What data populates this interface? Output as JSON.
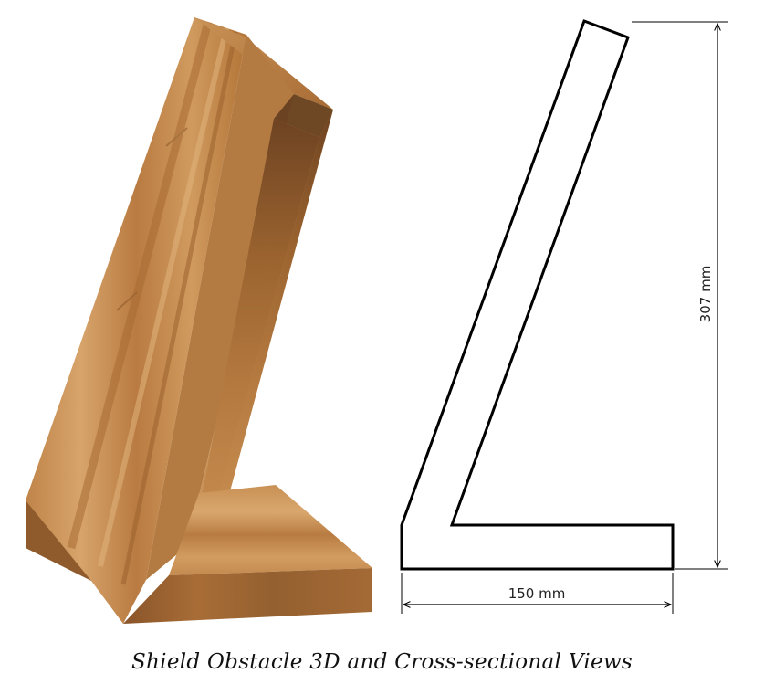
{
  "dimensions": {
    "width_label": "150 mm",
    "height_label": "307 mm"
  },
  "caption": "Shield Obstacle 3D and Cross-sectional Views",
  "colors": {
    "wood_light": "#d3a067",
    "wood_mid": "#b87d45",
    "wood_dark": "#8c5a2e",
    "outline": "#000000"
  }
}
